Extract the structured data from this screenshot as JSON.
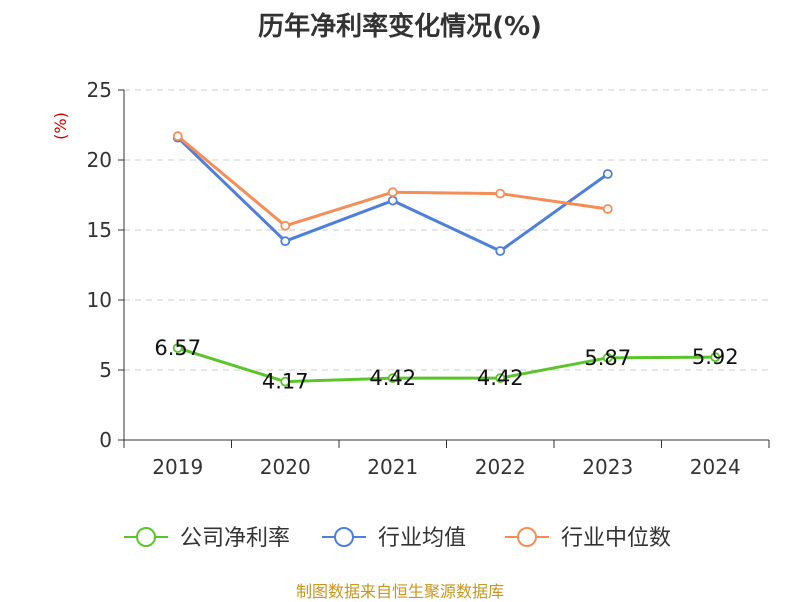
{
  "title": "历年净利率变化情况(%)",
  "source": "制图数据来自恒生聚源数据库",
  "chart_data": {
    "type": "line",
    "title": "历年净利率变化情况(%)",
    "ylabel": "(%)",
    "xlabel": "",
    "categories": [
      "2019",
      "2020",
      "2021",
      "2022",
      "2023",
      "2024"
    ],
    "ylim": [
      0,
      25
    ],
    "yticks": [
      0,
      5,
      10,
      15,
      20,
      25
    ],
    "grid": true,
    "legend_position": "bottom",
    "series": [
      {
        "name": "公司净利率",
        "color": "#5bc42b",
        "values": [
          6.57,
          4.17,
          4.42,
          4.42,
          5.87,
          5.92
        ],
        "labels": [
          "6.57",
          "4.17",
          "4.42",
          "4.42",
          "5.87",
          "5.92"
        ]
      },
      {
        "name": "行业均值",
        "color": "#4e7fdc",
        "values": [
          21.6,
          14.2,
          17.1,
          13.5,
          19.0,
          null
        ]
      },
      {
        "name": "行业中位数",
        "color": "#f58d58",
        "values": [
          21.7,
          15.3,
          17.7,
          17.6,
          16.5,
          null
        ]
      }
    ]
  }
}
